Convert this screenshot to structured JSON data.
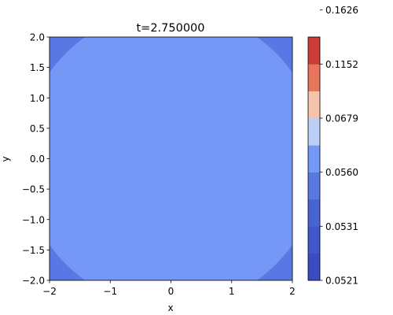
{
  "chart_data": {
    "type": "heatmap",
    "subtype": "filled-contour",
    "title": "t=2.750000",
    "xlabel": "x",
    "ylabel": "y",
    "xlim": [
      -2,
      2
    ],
    "ylim": [
      -2,
      2
    ],
    "x_ticks": [
      "−2",
      "−1",
      "0",
      "1",
      "2"
    ],
    "x_tick_values": [
      -2,
      -1,
      0,
      1,
      2
    ],
    "y_ticks": [
      "−2.0",
      "−1.5",
      "−1.0",
      "−0.5",
      "0.0",
      "0.5",
      "1.0",
      "1.5",
      "2.0"
    ],
    "y_tick_values": [
      -2.0,
      -1.5,
      -1.0,
      -0.5,
      0.0,
      0.5,
      1.0,
      1.5,
      2.0
    ],
    "colormap": "coolwarm",
    "colorbar": {
      "tick_labels": [
        "0.0521",
        "0.0531",
        "0.0560",
        "0.0679",
        "0.1152",
        "0.1626"
      ],
      "tick_levels": [
        0,
        2,
        4,
        6,
        8,
        10
      ],
      "level_colors": [
        "#3b4cc0",
        "#4257c9",
        "#4a63d3",
        "#5a78e4",
        "#7597f6",
        "#b9d0f9",
        "#f5c4ac",
        "#e8765c",
        "#cc3d3a"
      ]
    },
    "field_description": "radially symmetric field; lower value in the four corners beyond radius ~2.45, near-constant value inside",
    "regions": [
      {
        "name": "corners",
        "level_index": 3,
        "color": "#5a78e4"
      },
      {
        "name": "center",
        "level_index": 4,
        "color": "#7597f6"
      }
    ],
    "boundary_radius": 2.45
  }
}
